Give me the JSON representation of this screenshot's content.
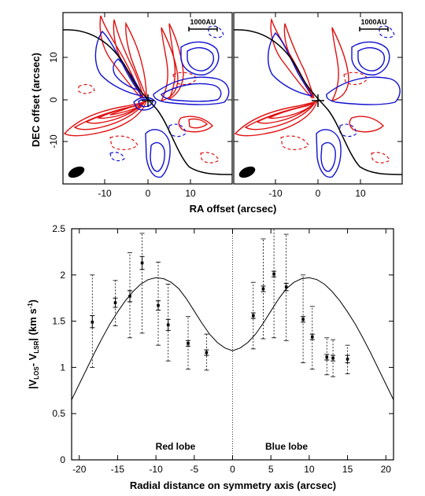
{
  "top_panels": {
    "xlabel": "RA offset (arcsec)",
    "ylabel": "DEC offset (arcsec)",
    "x_ticks": [
      "-10",
      "0",
      "10"
    ],
    "y_ticks": [
      "10",
      "0",
      "-10"
    ],
    "xlim": [
      -19,
      19
    ],
    "ylim": [
      -20,
      20
    ],
    "scale_bar_label": "1000AU",
    "colors": {
      "red": "#e01010",
      "blue": "#1010d0",
      "curve": "#000000"
    },
    "panels": [
      {
        "id": "left"
      },
      {
        "id": "right"
      }
    ]
  },
  "chart_data": {
    "type": "scatter",
    "ylabel_main": "|V",
    "ylabel_sub1": "LOS",
    "ylabel_mid": "- V",
    "ylabel_sub2": "LSR",
    "ylabel_tail": "| (km s",
    "ylabel_sup": "-1",
    "ylabel_end": ")",
    "xlabel": "Radial distance on symmetry axis (arcsec)",
    "xlim": [
      -21,
      21
    ],
    "ylim": [
      0,
      2.5
    ],
    "x_ticks": [
      -20,
      -15,
      -10,
      -5,
      0,
      5,
      10,
      15,
      20
    ],
    "y_ticks": [
      0,
      0.5,
      1,
      1.5,
      2,
      2.5
    ],
    "x_tick_labels": [
      "-20",
      "-15",
      "-10",
      "-5",
      "0",
      "5",
      "10",
      "15",
      "20"
    ],
    "y_tick_labels": [
      "0",
      "0.5",
      "1",
      "1.5",
      "2",
      "2.5"
    ],
    "annotations": [
      "Red lobe",
      "Blue lobe"
    ],
    "points": [
      {
        "x": -18.3,
        "y": 1.49,
        "err_lo": 0.06,
        "err_hi": 0.07,
        "range_lo": 1.0,
        "range_hi": 2.0
      },
      {
        "x": -15.3,
        "y": 1.7,
        "err_lo": 0.05,
        "err_hi": 0.05,
        "range_lo": 1.45,
        "range_hi": 1.94
      },
      {
        "x": -13.4,
        "y": 1.77,
        "err_lo": 0.06,
        "err_hi": 0.06,
        "range_lo": 1.32,
        "range_hi": 2.24
      },
      {
        "x": -11.8,
        "y": 2.13,
        "err_lo": 0.07,
        "err_hi": 0.07,
        "range_lo": 1.37,
        "range_hi": 2.45
      },
      {
        "x": -9.7,
        "y": 1.67,
        "err_lo": 0.05,
        "err_hi": 0.05,
        "range_lo": 1.24,
        "range_hi": 2.14
      },
      {
        "x": -8.4,
        "y": 1.46,
        "err_lo": 0.06,
        "err_hi": 0.06,
        "range_lo": 1.07,
        "range_hi": 1.9
      },
      {
        "x": -5.8,
        "y": 1.26,
        "err_lo": 0.03,
        "err_hi": 0.03,
        "range_lo": 0.98,
        "range_hi": 1.55
      },
      {
        "x": -3.4,
        "y": 1.16,
        "err_lo": 0.03,
        "err_hi": 0.03,
        "range_lo": 0.97,
        "range_hi": 1.36
      },
      {
        "x": 2.7,
        "y": 1.56,
        "err_lo": 0.03,
        "err_hi": 0.03,
        "range_lo": 1.2,
        "range_hi": 1.92
      },
      {
        "x": 4.0,
        "y": 1.85,
        "err_lo": 0.03,
        "err_hi": 0.03,
        "range_lo": 1.31,
        "range_hi": 2.39
      },
      {
        "x": 5.4,
        "y": 2.01,
        "err_lo": 0.03,
        "err_hi": 0.03,
        "range_lo": 1.32,
        "range_hi": 2.5
      },
      {
        "x": 7.0,
        "y": 1.87,
        "err_lo": 0.04,
        "err_hi": 0.04,
        "range_lo": 1.29,
        "range_hi": 2.44
      },
      {
        "x": 9.2,
        "y": 1.52,
        "err_lo": 0.03,
        "err_hi": 0.03,
        "range_lo": 1.05,
        "range_hi": 2.0
      },
      {
        "x": 10.4,
        "y": 1.33,
        "err_lo": 0.03,
        "err_hi": 0.03,
        "range_lo": 0.98,
        "range_hi": 1.66
      },
      {
        "x": 12.3,
        "y": 1.11,
        "err_lo": 0.03,
        "err_hi": 0.03,
        "range_lo": 0.92,
        "range_hi": 1.32
      },
      {
        "x": 13.1,
        "y": 1.1,
        "err_lo": 0.03,
        "err_hi": 0.03,
        "range_lo": 0.9,
        "range_hi": 1.3
      },
      {
        "x": 15.0,
        "y": 1.09,
        "err_lo": 0.04,
        "err_hi": 0.04,
        "range_lo": 0.93,
        "range_hi": 1.24
      }
    ],
    "model_curve": [
      [
        -21,
        0.65
      ],
      [
        -20,
        0.82
      ],
      [
        -19,
        0.99
      ],
      [
        -18,
        1.16
      ],
      [
        -17,
        1.32
      ],
      [
        -16,
        1.47
      ],
      [
        -15,
        1.6
      ],
      [
        -14,
        1.72
      ],
      [
        -13,
        1.82
      ],
      [
        -12,
        1.9
      ],
      [
        -11,
        1.95
      ],
      [
        -10,
        1.97
      ],
      [
        -9,
        1.96
      ],
      [
        -8,
        1.92
      ],
      [
        -7,
        1.85
      ],
      [
        -6,
        1.74
      ],
      [
        -5,
        1.61
      ],
      [
        -4,
        1.48
      ],
      [
        -3,
        1.36
      ],
      [
        -2,
        1.27
      ],
      [
        -1,
        1.21
      ],
      [
        0,
        1.18
      ],
      [
        1,
        1.21
      ],
      [
        2,
        1.27
      ],
      [
        3,
        1.36
      ],
      [
        4,
        1.48
      ],
      [
        5,
        1.61
      ],
      [
        6,
        1.74
      ],
      [
        7,
        1.85
      ],
      [
        8,
        1.92
      ],
      [
        9,
        1.96
      ],
      [
        10,
        1.97
      ],
      [
        11,
        1.95
      ],
      [
        12,
        1.9
      ],
      [
        13,
        1.82
      ],
      [
        14,
        1.72
      ],
      [
        15,
        1.6
      ],
      [
        16,
        1.47
      ],
      [
        17,
        1.32
      ],
      [
        18,
        1.16
      ],
      [
        19,
        0.99
      ],
      [
        20,
        0.82
      ],
      [
        21,
        0.65
      ]
    ]
  }
}
